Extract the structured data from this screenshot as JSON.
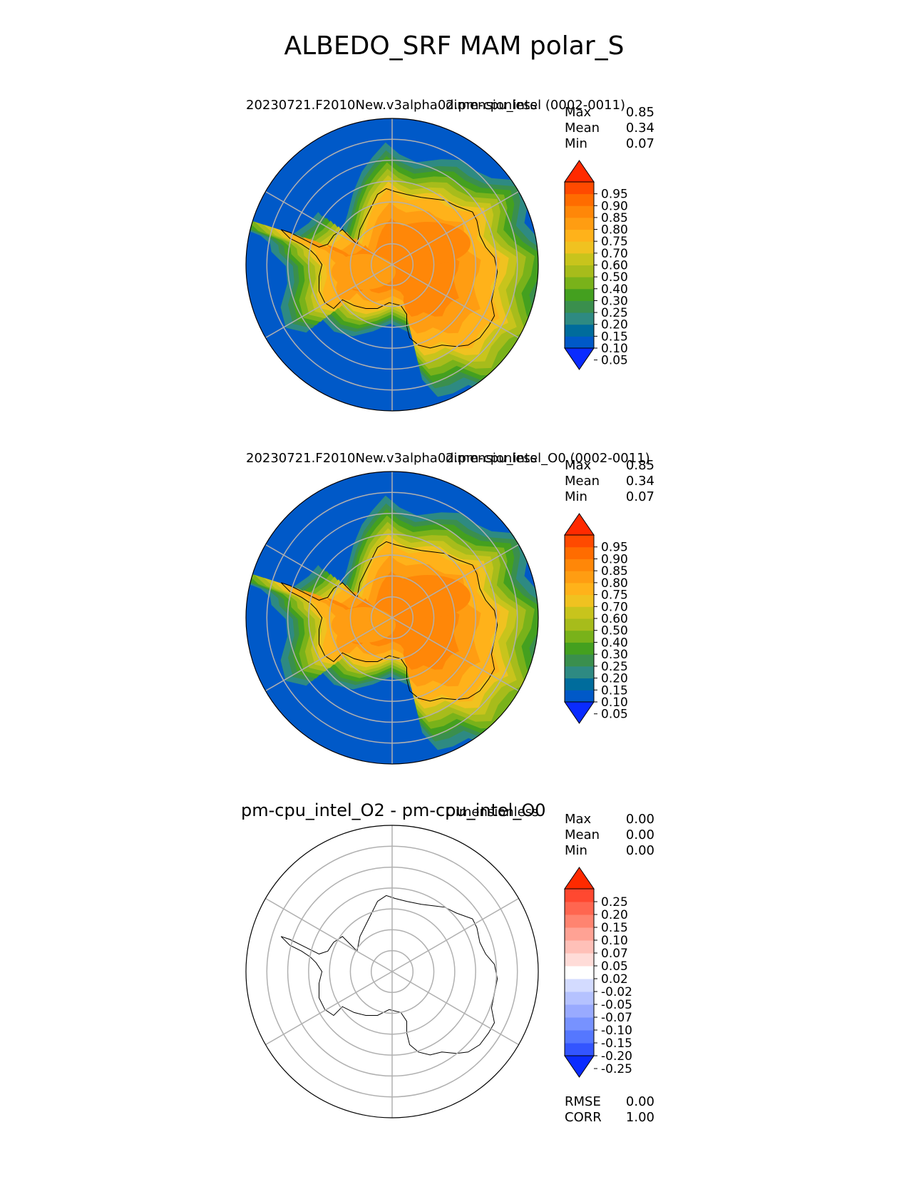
{
  "figure": {
    "title": "ALBEDO_SRF MAM polar_S"
  },
  "panels": [
    {
      "id": "test",
      "title": "20230721.F2010New.v3alpha02.pm-cpu_intel (0002-0011)",
      "units": "dimensionless",
      "stats": [
        {
          "label": "Max",
          "value": "0.85"
        },
        {
          "label": "Mean",
          "value": "0.34"
        },
        {
          "label": "Min",
          "value": "0.07"
        }
      ],
      "colorbar": {
        "ticks": [
          "0.95",
          "0.90",
          "0.85",
          "0.80",
          "0.75",
          "0.70",
          "0.60",
          "0.50",
          "0.40",
          "0.30",
          "0.25",
          "0.20",
          "0.15",
          "0.10",
          "0.05"
        ],
        "colors": [
          "#0a2bff",
          "#0059c8",
          "#006c9c",
          "#2e8a82",
          "#3a8f4d",
          "#44a01f",
          "#79b21a",
          "#a7bc1b",
          "#c8c41c",
          "#f0c220",
          "#ffb21a",
          "#ff9d12",
          "#ff8708",
          "#ff6c00",
          "#ff4a00",
          "#ff2a00"
        ],
        "extend": "both"
      },
      "map": {
        "type": "field"
      }
    },
    {
      "id": "reference",
      "title": "20230721.F2010New.v3alpha02.pm-cpu_intel_O0 (0002-0011)",
      "units": "dimensionless",
      "stats": [
        {
          "label": "Max",
          "value": "0.85"
        },
        {
          "label": "Mean",
          "value": "0.34"
        },
        {
          "label": "Min",
          "value": "0.07"
        }
      ],
      "colorbar": {
        "ticks": [
          "0.95",
          "0.90",
          "0.85",
          "0.80",
          "0.75",
          "0.70",
          "0.60",
          "0.50",
          "0.40",
          "0.30",
          "0.25",
          "0.20",
          "0.15",
          "0.10",
          "0.05"
        ],
        "colors": [
          "#0a2bff",
          "#0059c8",
          "#006c9c",
          "#2e8a82",
          "#3a8f4d",
          "#44a01f",
          "#79b21a",
          "#a7bc1b",
          "#c8c41c",
          "#f0c220",
          "#ffb21a",
          "#ff9d12",
          "#ff8708",
          "#ff6c00",
          "#ff4a00",
          "#ff2a00"
        ],
        "extend": "both"
      },
      "map": {
        "type": "field"
      }
    },
    {
      "id": "diff",
      "title": "pm-cpu_intel_O2 - pm-cpu_intel_O0",
      "units": "Dimensionless",
      "stats": [
        {
          "label": "Max",
          "value": "0.00"
        },
        {
          "label": "Mean",
          "value": "0.00"
        },
        {
          "label": "Min",
          "value": "0.00"
        }
      ],
      "colorbar": {
        "ticks": [
          "0.25",
          "0.20",
          "0.15",
          "0.10",
          "0.07",
          "0.05",
          "0.02",
          "-0.02",
          "-0.05",
          "-0.07",
          "-0.10",
          "-0.15",
          "-0.20",
          "-0.25"
        ],
        "colors": [
          "#0a2bff",
          "#3355ff",
          "#5577ff",
          "#7792ff",
          "#99aaff",
          "#b5c2ff",
          "#d3dbff",
          "#ffffff",
          "#ffdcd8",
          "#ffc0b8",
          "#ffa294",
          "#ff8470",
          "#ff6650",
          "#ff4830",
          "#ff2a00"
        ],
        "extend": "both"
      },
      "metrics": [
        {
          "label": "RMSE",
          "value": "0.00"
        },
        {
          "label": "CORR",
          "value": "1.00"
        }
      ],
      "map": {
        "type": "outline"
      }
    }
  ],
  "chart_data": {
    "type": "heatmap",
    "projection": "south-polar-stereographic",
    "variable": "ALBEDO_SRF",
    "season": "MAM",
    "region": "polar_S",
    "grid": true,
    "panels": [
      {
        "name": "20230721.F2010New.v3alpha02.pm-cpu_intel (0002-0011)",
        "max": 0.85,
        "mean": 0.34,
        "min": 0.07,
        "levels": [
          0.05,
          0.1,
          0.15,
          0.2,
          0.25,
          0.3,
          0.4,
          0.5,
          0.6,
          0.7,
          0.75,
          0.8,
          0.85,
          0.9,
          0.95
        ]
      },
      {
        "name": "20230721.F2010New.v3alpha02.pm-cpu_intel_O0 (0002-0011)",
        "max": 0.85,
        "mean": 0.34,
        "min": 0.07,
        "levels": [
          0.05,
          0.1,
          0.15,
          0.2,
          0.25,
          0.3,
          0.4,
          0.5,
          0.6,
          0.7,
          0.75,
          0.8,
          0.85,
          0.9,
          0.95
        ]
      },
      {
        "name": "pm-cpu_intel_O2 - pm-cpu_intel_O0",
        "max": 0.0,
        "mean": 0.0,
        "min": 0.0,
        "rmse": 0.0,
        "corr": 1.0,
        "levels": [
          -0.25,
          -0.2,
          -0.15,
          -0.1,
          -0.07,
          -0.05,
          -0.02,
          0.02,
          0.05,
          0.07,
          0.1,
          0.15,
          0.2,
          0.25
        ]
      }
    ]
  }
}
